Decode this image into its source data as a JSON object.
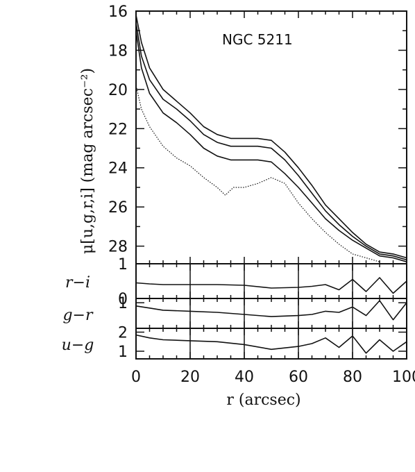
{
  "chart_data": [
    {
      "type": "line",
      "annotation": "NGC 5211",
      "ylabel": "μ[u,g,r,i] (mag arcsec⁻²)",
      "xlim": [
        0,
        100
      ],
      "ylim": [
        28.9,
        16
      ],
      "yticks": [
        16,
        18,
        20,
        22,
        24,
        26,
        28
      ],
      "series": [
        {
          "style": "solid",
          "x": [
            0,
            2,
            5,
            10,
            15,
            20,
            25,
            30,
            35,
            40,
            45,
            50,
            55,
            60,
            65,
            70,
            75,
            80,
            85,
            90,
            95,
            100
          ],
          "y": [
            16.2,
            17.6,
            18.9,
            20.0,
            20.6,
            21.2,
            21.9,
            22.3,
            22.5,
            22.5,
            22.5,
            22.6,
            23.2,
            24.0,
            24.9,
            25.9,
            26.6,
            27.3,
            27.9,
            28.3,
            28.4,
            28.6
          ]
        },
        {
          "style": "solid",
          "x": [
            0,
            2,
            5,
            10,
            15,
            20,
            25,
            30,
            35,
            40,
            45,
            50,
            55,
            60,
            65,
            70,
            75,
            80,
            85,
            90,
            95,
            100
          ],
          "y": [
            16.6,
            18.3,
            19.5,
            20.5,
            21.0,
            21.6,
            22.3,
            22.7,
            22.9,
            22.9,
            22.9,
            23.0,
            23.6,
            24.4,
            25.3,
            26.2,
            26.9,
            27.5,
            28.0,
            28.4,
            28.5,
            28.7
          ]
        },
        {
          "style": "solid",
          "x": [
            0,
            2,
            5,
            10,
            15,
            20,
            25,
            30,
            35,
            40,
            45,
            50,
            55,
            60,
            65,
            70,
            75,
            80,
            85,
            90,
            95,
            100
          ],
          "y": [
            17.0,
            18.9,
            20.2,
            21.2,
            21.7,
            22.3,
            23.0,
            23.4,
            23.6,
            23.6,
            23.6,
            23.7,
            24.3,
            25.0,
            25.8,
            26.6,
            27.2,
            27.7,
            28.1,
            28.5,
            28.6,
            28.8
          ]
        },
        {
          "style": "dotted",
          "x": [
            0,
            2,
            5,
            10,
            15,
            20,
            25,
            30,
            33,
            36,
            40,
            45,
            50,
            55,
            60,
            65,
            70,
            75,
            80,
            85,
            90
          ],
          "y": [
            19.8,
            21.0,
            21.9,
            22.9,
            23.5,
            23.9,
            24.5,
            25.0,
            25.4,
            25.0,
            25.0,
            24.8,
            24.5,
            24.8,
            25.8,
            26.6,
            27.3,
            27.9,
            28.4,
            28.6,
            28.8
          ]
        }
      ]
    },
    {
      "type": "line",
      "ylabel": "r−i",
      "xlim": [
        0,
        100
      ],
      "ylim": [
        0,
        1
      ],
      "yticks": [
        0,
        1
      ],
      "series": [
        {
          "x": [
            0,
            5,
            10,
            20,
            30,
            40,
            50,
            60,
            65,
            70,
            75,
            80,
            85,
            90,
            95,
            100
          ],
          "y": [
            0.45,
            0.42,
            0.4,
            0.4,
            0.4,
            0.38,
            0.3,
            0.32,
            0.35,
            0.4,
            0.25,
            0.55,
            0.2,
            0.6,
            0.15,
            0.5
          ]
        }
      ]
    },
    {
      "type": "line",
      "ylabel": "g−r",
      "xlim": [
        0,
        100
      ],
      "ylim": [
        -0.2,
        1.2
      ],
      "yticks": [
        1
      ],
      "series": [
        {
          "x": [
            0,
            5,
            10,
            20,
            30,
            40,
            50,
            60,
            65,
            70,
            75,
            80,
            85,
            90,
            95,
            100
          ],
          "y": [
            0.85,
            0.75,
            0.65,
            0.6,
            0.55,
            0.45,
            0.35,
            0.4,
            0.45,
            0.6,
            0.55,
            0.8,
            0.4,
            1.1,
            0.2,
            1.0
          ]
        }
      ]
    },
    {
      "type": "line",
      "ylabel": "u−g",
      "xlim": [
        0,
        100
      ],
      "ylim": [
        0.6,
        2.2
      ],
      "yticks": [
        1,
        2
      ],
      "xticks": [
        0,
        20,
        40,
        60,
        80,
        100
      ],
      "xlabel": "r (arcsec)",
      "series": [
        {
          "x": [
            0,
            5,
            10,
            20,
            30,
            40,
            50,
            60,
            65,
            70,
            75,
            80,
            85,
            90,
            95,
            100
          ],
          "y": [
            1.85,
            1.7,
            1.6,
            1.55,
            1.5,
            1.35,
            1.1,
            1.25,
            1.4,
            1.7,
            1.2,
            1.8,
            0.9,
            1.6,
            1.0,
            1.5
          ]
        }
      ]
    }
  ]
}
